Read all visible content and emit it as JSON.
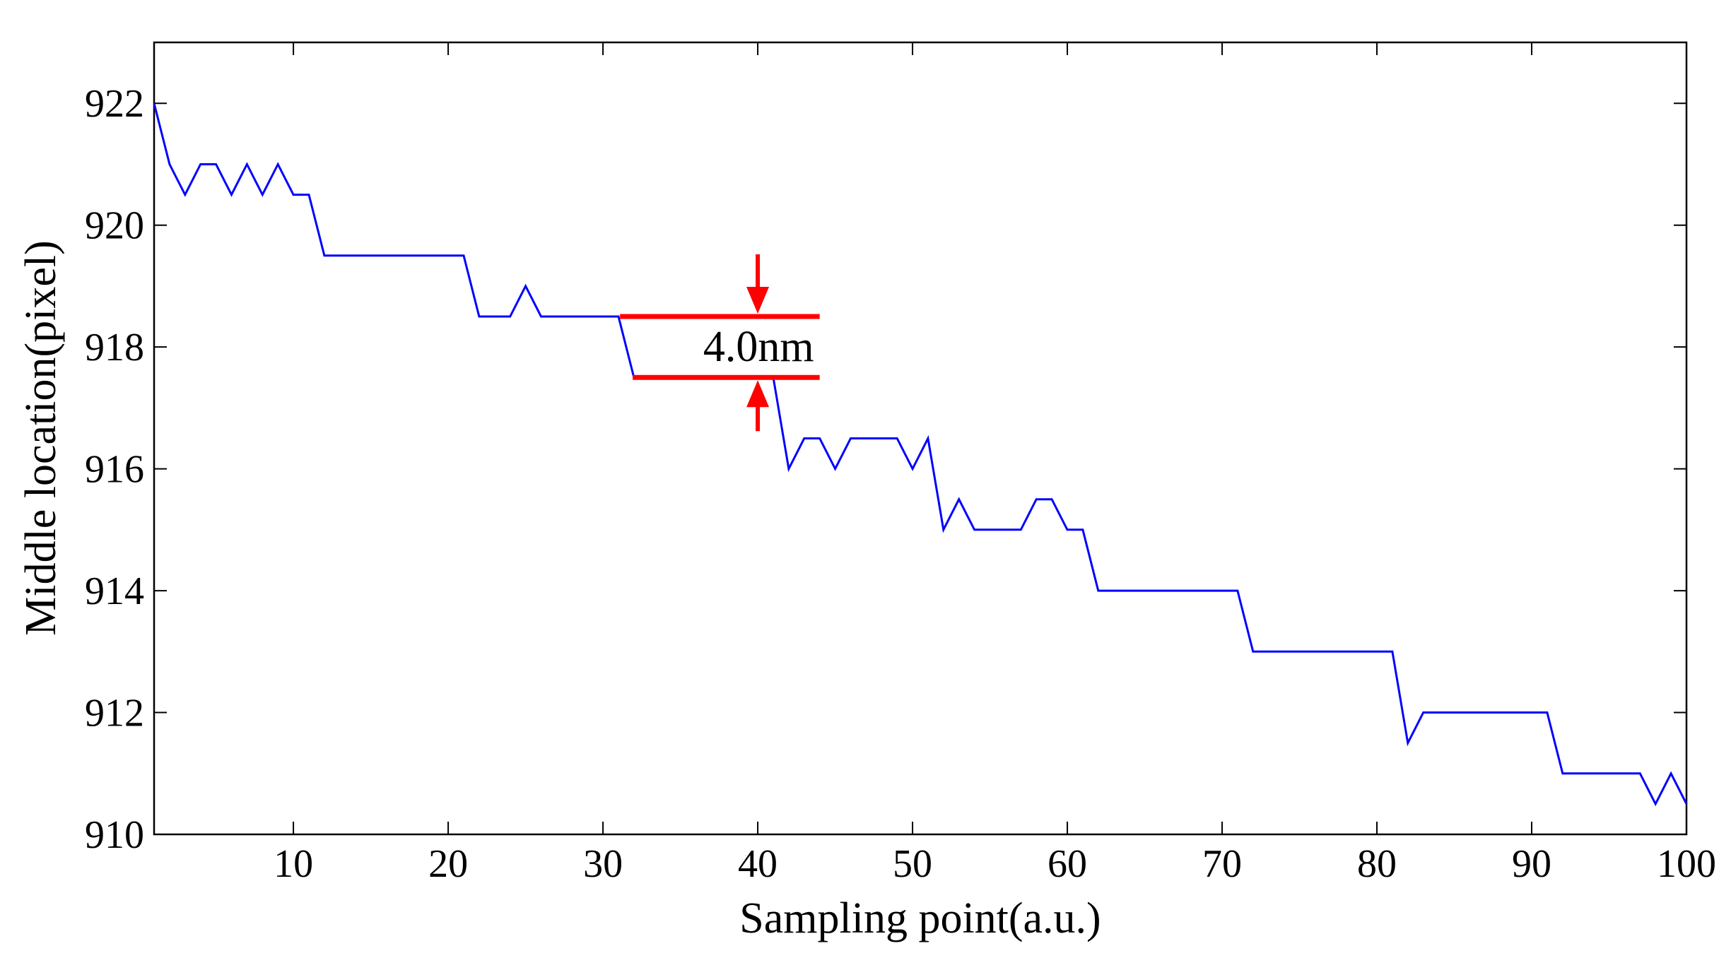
{
  "chart_data": {
    "type": "line",
    "title": "",
    "xlabel": "Sampling point(a.u.)",
    "ylabel": "Middle location(pixel)",
    "xlim": [
      1,
      100
    ],
    "ylim": [
      910,
      923
    ],
    "xticks": [
      10,
      20,
      30,
      40,
      50,
      60,
      70,
      80,
      90,
      100
    ],
    "yticks": [
      910,
      912,
      914,
      916,
      918,
      920,
      922
    ],
    "grid": false,
    "series": [
      {
        "name": "middle location",
        "color": "#0000ff",
        "x": [
          1,
          2,
          3,
          4,
          5,
          6,
          7,
          8,
          9,
          10,
          11,
          12,
          13,
          14,
          15,
          16,
          17,
          18,
          19,
          20,
          21,
          22,
          23,
          24,
          25,
          26,
          27,
          28,
          29,
          30,
          31,
          32,
          33,
          34,
          35,
          36,
          37,
          38,
          39,
          40,
          41,
          42,
          43,
          44,
          45,
          46,
          47,
          48,
          49,
          50,
          51,
          52,
          53,
          54,
          55,
          56,
          57,
          58,
          59,
          60,
          61,
          62,
          63,
          64,
          65,
          66,
          67,
          68,
          69,
          70,
          71,
          72,
          73,
          74,
          75,
          76,
          77,
          78,
          79,
          80,
          81,
          82,
          83,
          84,
          85,
          86,
          87,
          88,
          89,
          90,
          91,
          92,
          93,
          94,
          95,
          96,
          97,
          98,
          99,
          100
        ],
        "values": [
          922,
          921,
          920.5,
          921,
          921,
          920.5,
          921,
          920.5,
          921,
          920.5,
          920.5,
          919.5,
          919.5,
          919.5,
          919.5,
          919.5,
          919.5,
          919.5,
          919.5,
          919.5,
          919.5,
          918.5,
          918.5,
          918.5,
          919,
          918.5,
          918.5,
          918.5,
          918.5,
          918.5,
          918.5,
          917.5,
          917.5,
          917.5,
          917.5,
          917.5,
          917.5,
          917.5,
          917.5,
          917.5,
          917.5,
          916,
          916.5,
          916.5,
          916,
          916.5,
          916.5,
          916.5,
          916.5,
          916,
          916.5,
          915,
          915.5,
          915,
          915,
          915,
          915,
          915.5,
          915.5,
          915,
          915,
          914,
          914,
          914,
          914,
          914,
          914,
          914,
          914,
          914,
          914,
          913,
          913,
          913,
          913,
          913,
          913,
          913,
          913,
          913,
          913,
          911.5,
          912,
          912,
          912,
          912,
          912,
          912,
          912,
          912,
          912,
          911,
          911,
          911,
          911,
          911,
          911,
          910.5,
          911,
          910.5
        ]
      }
    ],
    "annotation": {
      "label": "4.0nm",
      "color": "#ff0000",
      "upper_y": 918.5,
      "lower_y": 917.5,
      "x_start": 31.1,
      "x_end": 44,
      "arrow_x": 40
    }
  }
}
